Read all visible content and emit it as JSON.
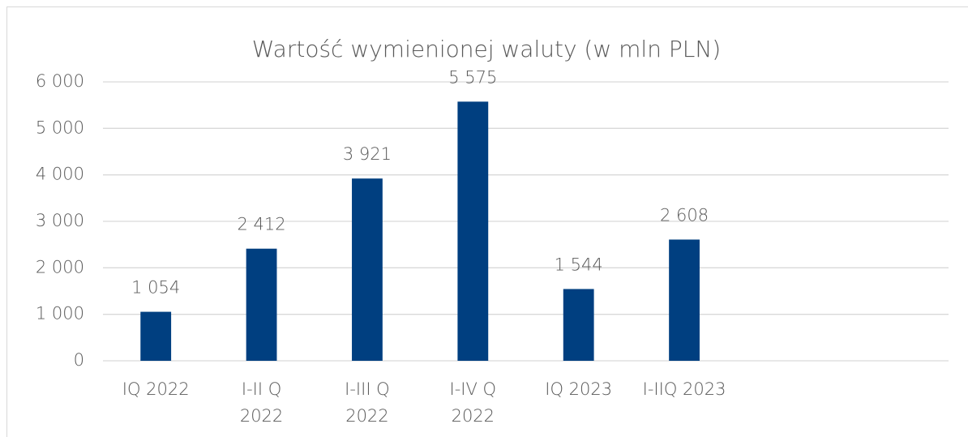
{
  "chart_data": {
    "type": "bar",
    "title": "Wartość wymienionej waluty (w mln PLN)",
    "categories": [
      "IQ 2022",
      "I-II Q 2022",
      "I-III Q 2022",
      "I-IV Q 2022",
      "IQ 2023",
      "I-IIQ 2023",
      null,
      null
    ],
    "values": [
      1054,
      2412,
      3921,
      5575,
      1544,
      2608,
      null,
      null
    ],
    "value_labels": [
      "1 054",
      "2 412",
      "3 921",
      "5 575",
      "1 544",
      "2 608",
      null,
      null
    ],
    "color": "#003f80",
    "ylim": [
      0,
      6000
    ],
    "yticks": [
      0,
      {
        "value": 1000,
        "label": "1 000"
      },
      {
        "value": 2000,
        "label": "2 000"
      },
      {
        "value": 3000,
        "label": "3 000"
      },
      {
        "value": 4000,
        "label": "4 000"
      },
      {
        "value": 5000,
        "label": "5 000"
      },
      {
        "value": 6000,
        "label": "6 000"
      }
    ],
    "grid": true
  }
}
